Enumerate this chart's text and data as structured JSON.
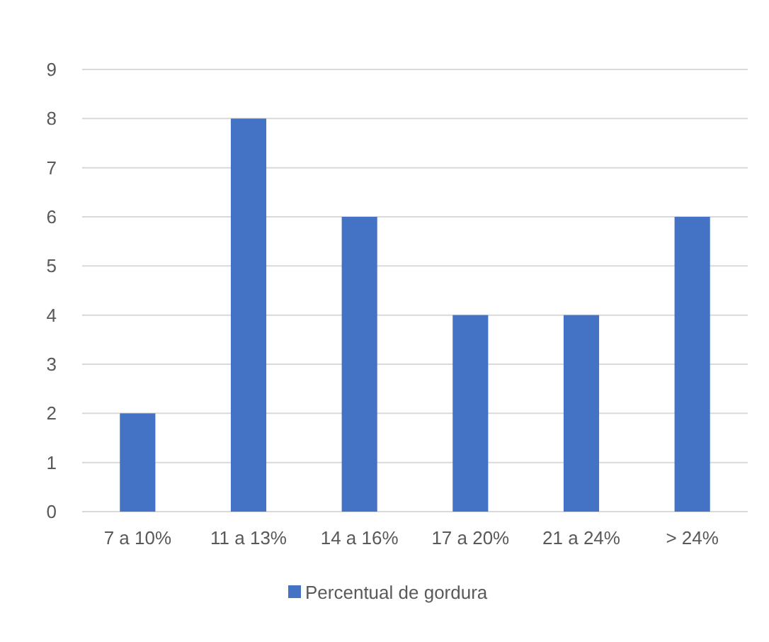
{
  "chart_data": {
    "type": "bar",
    "categories": [
      "7 a 10%",
      "11 a 13%",
      "14 a 16%",
      "17 a 20%",
      "21 a 24%",
      "> 24%"
    ],
    "series": [
      {
        "name": "Percentual de gordura",
        "color": "#4472c4",
        "values": [
          2,
          8,
          6,
          4,
          4,
          6
        ]
      }
    ],
    "ylim": [
      0,
      9
    ],
    "yticks": [
      0,
      1,
      2,
      3,
      4,
      5,
      6,
      7,
      8,
      9
    ],
    "grid": "y",
    "legend": "bottom"
  }
}
